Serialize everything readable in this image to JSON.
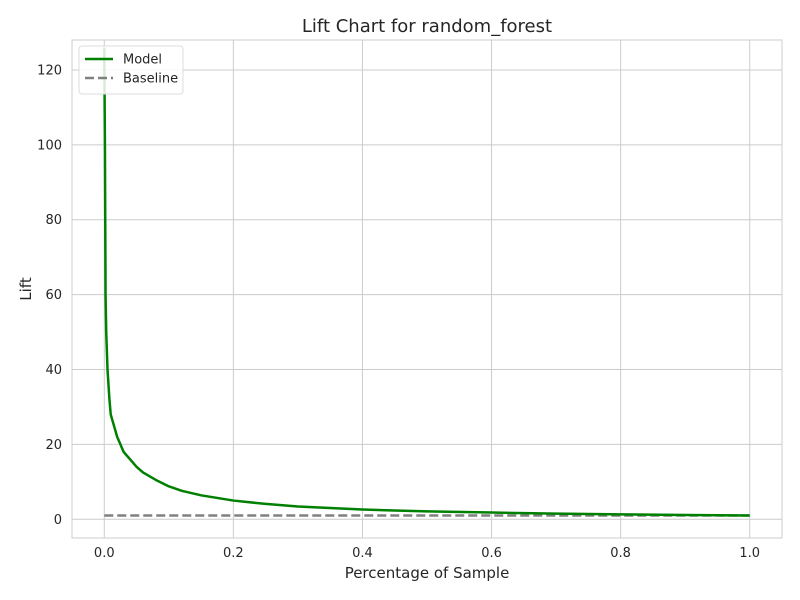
{
  "chart_data": {
    "type": "line",
    "title": "Lift Chart for random_forest",
    "xlabel": "Percentage of Sample",
    "ylabel": "Lift",
    "xlim": [
      -0.05,
      1.05
    ],
    "ylim": [
      -5,
      128
    ],
    "xticks": [
      0.0,
      0.2,
      0.4,
      0.6,
      0.8,
      1.0
    ],
    "xtick_labels": [
      "0.0",
      "0.2",
      "0.4",
      "0.6",
      "0.8",
      "1.0"
    ],
    "yticks": [
      0,
      20,
      40,
      60,
      80,
      100,
      120
    ],
    "ytick_labels": [
      "0",
      "20",
      "40",
      "60",
      "80",
      "100",
      "120"
    ],
    "grid": true,
    "legend_position": "top-left",
    "series": [
      {
        "name": "Model",
        "color": "#008000",
        "style": "solid",
        "x": [
          0.0,
          0.001,
          0.002,
          0.003,
          0.005,
          0.008,
          0.01,
          0.015,
          0.02,
          0.03,
          0.04,
          0.05,
          0.06,
          0.08,
          0.1,
          0.12,
          0.15,
          0.2,
          0.25,
          0.3,
          0.4,
          0.5,
          0.6,
          0.7,
          0.8,
          0.9,
          1.0
        ],
        "values": [
          126,
          100,
          60,
          50,
          40,
          32,
          28,
          25,
          22,
          18,
          16,
          14,
          12.5,
          10.5,
          8.8,
          7.6,
          6.4,
          5.0,
          4.1,
          3.4,
          2.6,
          2.1,
          1.8,
          1.5,
          1.3,
          1.15,
          1.0
        ]
      },
      {
        "name": "Baseline",
        "color": "#808080",
        "style": "dashed",
        "x": [
          0.0,
          1.0
        ],
        "values": [
          1.0,
          1.0
        ]
      }
    ]
  }
}
